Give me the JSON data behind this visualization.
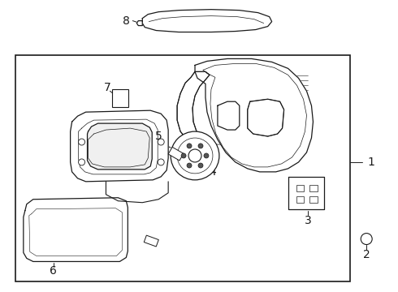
{
  "background": "#ffffff",
  "line_color": "#1a1a1a",
  "fig_w": 4.9,
  "fig_h": 3.6,
  "dpi": 100,
  "lw": 0.9,
  "font_size": 9,
  "label_font_size": 10
}
